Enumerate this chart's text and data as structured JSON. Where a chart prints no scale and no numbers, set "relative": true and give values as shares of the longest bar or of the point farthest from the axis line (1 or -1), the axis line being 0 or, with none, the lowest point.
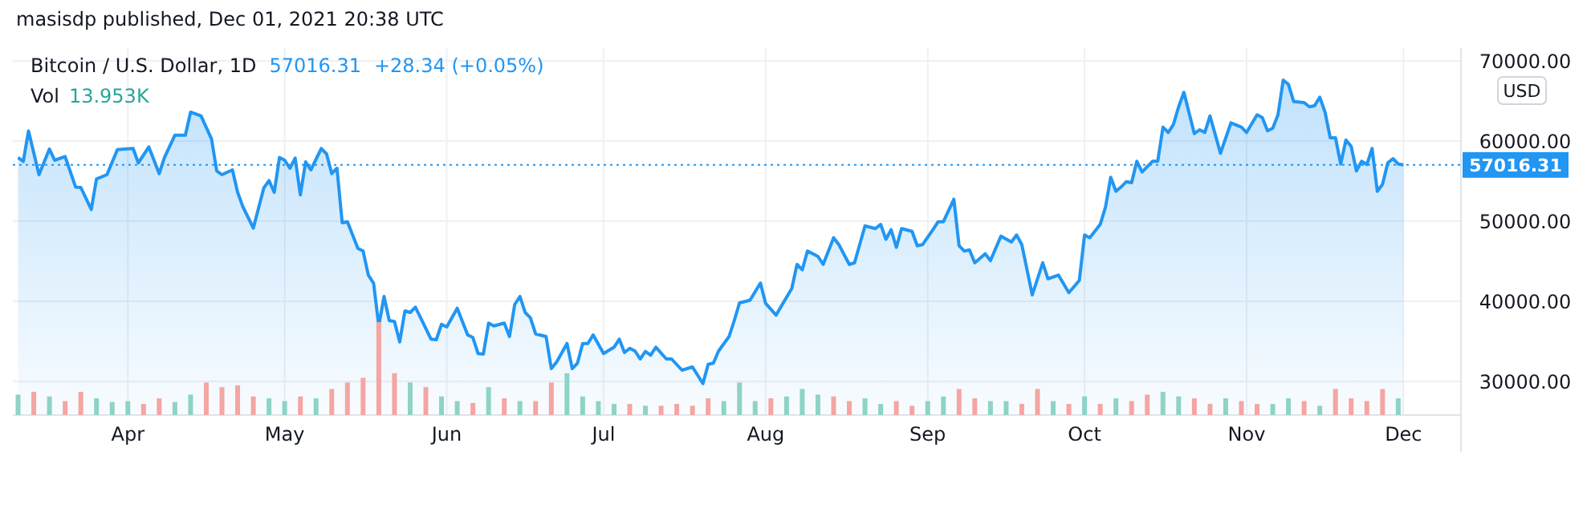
{
  "chart_data": [
    {
      "type": "area",
      "title": "Bitcoin / U.S. Dollar, 1D",
      "ylabel": "USD",
      "annotations": [
        "masisdp published, Dec 01, 2021 20:38 UTC",
        "57016.31",
        "+28.34 (+0.05%)",
        "Vol",
        "13.953K"
      ],
      "xlim": [
        "2021-03-10",
        "2021-12-12"
      ],
      "ylim": [
        25800,
        71600
      ],
      "xticks": [
        {
          "value": "2021-04-01",
          "label": "Apr"
        },
        {
          "value": "2021-05-01",
          "label": "May"
        },
        {
          "value": "2021-06-01",
          "label": "Jun"
        },
        {
          "value": "2021-07-01",
          "label": "Jul"
        },
        {
          "value": "2021-08-01",
          "label": "Aug"
        },
        {
          "value": "2021-09-01",
          "label": "Sep"
        },
        {
          "value": "2021-10-01",
          "label": "Oct"
        },
        {
          "value": "2021-11-01",
          "label": "Nov"
        },
        {
          "value": "2021-12-01",
          "label": "Dec"
        }
      ],
      "yticks": [
        {
          "value": 30000,
          "label": "30000.00"
        },
        {
          "value": 40000,
          "label": "40000.00"
        },
        {
          "value": 50000,
          "label": "50000.00"
        },
        {
          "value": 60000,
          "label": "60000.00"
        },
        {
          "value": 70000,
          "label": "70000.00"
        }
      ],
      "grid": true,
      "ref_lines": [
        {
          "axis": "y",
          "value": 57016.31,
          "label": "57016.31",
          "color": "#2196f3",
          "line_style": "dotted"
        }
      ],
      "series": [
        {
          "color": "#2196f3",
          "x": [
            "2021-03-11",
            "2021-03-12",
            "2021-03-13",
            "2021-03-15",
            "2021-03-17",
            "2021-03-18",
            "2021-03-20",
            "2021-03-22",
            "2021-03-23",
            "2021-03-25",
            "2021-03-26",
            "2021-03-28",
            "2021-03-30",
            "2021-04-02",
            "2021-04-03",
            "2021-04-05",
            "2021-04-07",
            "2021-04-08",
            "2021-04-10",
            "2021-04-12",
            "2021-04-13",
            "2021-04-15",
            "2021-04-17",
            "2021-04-18",
            "2021-04-19",
            "2021-04-21",
            "2021-04-22",
            "2021-04-23",
            "2021-04-25",
            "2021-04-27",
            "2021-04-28",
            "2021-04-29",
            "2021-04-30",
            "2021-05-01",
            "2021-05-02",
            "2021-05-03",
            "2021-05-04",
            "2021-05-05",
            "2021-05-06",
            "2021-05-08",
            "2021-05-09",
            "2021-05-10",
            "2021-05-11",
            "2021-05-12",
            "2021-05-13",
            "2021-05-15",
            "2021-05-16",
            "2021-05-17",
            "2021-05-18",
            "2021-05-19",
            "2021-05-20",
            "2021-05-21",
            "2021-05-22",
            "2021-05-23",
            "2021-05-24",
            "2021-05-25",
            "2021-05-26",
            "2021-05-27",
            "2021-05-29",
            "2021-05-30",
            "2021-05-31",
            "2021-06-01",
            "2021-06-03",
            "2021-06-05",
            "2021-06-06",
            "2021-06-07",
            "2021-06-08",
            "2021-06-09",
            "2021-06-10",
            "2021-06-12",
            "2021-06-13",
            "2021-06-14",
            "2021-06-15",
            "2021-06-16",
            "2021-06-17",
            "2021-06-18",
            "2021-06-20",
            "2021-06-21",
            "2021-06-22",
            "2021-06-24",
            "2021-06-25",
            "2021-06-26",
            "2021-06-27",
            "2021-06-28",
            "2021-06-29",
            "2021-07-01",
            "2021-07-03",
            "2021-07-04",
            "2021-07-05",
            "2021-07-06",
            "2021-07-07",
            "2021-07-08",
            "2021-07-09",
            "2021-07-10",
            "2021-07-11",
            "2021-07-13",
            "2021-07-14",
            "2021-07-16",
            "2021-07-18",
            "2021-07-20",
            "2021-07-21",
            "2021-07-22",
            "2021-07-23",
            "2021-07-25",
            "2021-07-26",
            "2021-07-27",
            "2021-07-29",
            "2021-07-31",
            "2021-08-01",
            "2021-08-03",
            "2021-08-04",
            "2021-08-06",
            "2021-08-07",
            "2021-08-08",
            "2021-08-09",
            "2021-08-11",
            "2021-08-12",
            "2021-08-14",
            "2021-08-15",
            "2021-08-17",
            "2021-08-18",
            "2021-08-20",
            "2021-08-22",
            "2021-08-23",
            "2021-08-24",
            "2021-08-25",
            "2021-08-26",
            "2021-08-27",
            "2021-08-29",
            "2021-08-30",
            "2021-08-31",
            "2021-09-02",
            "2021-09-03",
            "2021-09-04",
            "2021-09-06",
            "2021-09-07",
            "2021-09-08",
            "2021-09-09",
            "2021-09-10",
            "2021-09-12",
            "2021-09-13",
            "2021-09-15",
            "2021-09-17",
            "2021-09-18",
            "2021-09-19",
            "2021-09-21",
            "2021-09-23",
            "2021-09-24",
            "2021-09-26",
            "2021-09-28",
            "2021-09-30",
            "2021-10-01",
            "2021-10-02",
            "2021-10-04",
            "2021-10-05",
            "2021-10-06",
            "2021-10-07",
            "2021-10-08",
            "2021-10-09",
            "2021-10-10",
            "2021-10-11",
            "2021-10-12",
            "2021-10-14",
            "2021-10-15",
            "2021-10-16",
            "2021-10-17",
            "2021-10-18",
            "2021-10-19",
            "2021-10-20",
            "2021-10-22",
            "2021-10-23",
            "2021-10-24",
            "2021-10-25",
            "2021-10-27",
            "2021-10-29",
            "2021-10-31",
            "2021-11-01",
            "2021-11-03",
            "2021-11-04",
            "2021-11-05",
            "2021-11-06",
            "2021-11-07",
            "2021-11-08",
            "2021-11-09",
            "2021-11-10",
            "2021-11-12",
            "2021-11-13",
            "2021-11-14",
            "2021-11-15",
            "2021-11-16",
            "2021-11-17",
            "2021-11-18",
            "2021-11-19",
            "2021-11-20",
            "2021-11-21",
            "2021-11-22",
            "2021-11-23",
            "2021-11-24",
            "2021-11-25",
            "2021-11-26",
            "2021-11-27",
            "2021-11-28",
            "2021-11-29",
            "2021-11-30",
            "2021-12-01"
          ],
          "values": [
            57940,
            57460,
            61260,
            55800,
            59000,
            57600,
            58060,
            54260,
            54200,
            51460,
            55260,
            55800,
            58930,
            59070,
            57270,
            59270,
            55930,
            57940,
            60730,
            60730,
            63600,
            63130,
            60270,
            56270,
            55800,
            56400,
            53600,
            51800,
            49130,
            54130,
            55070,
            53600,
            57940,
            57600,
            56600,
            57870,
            53270,
            57400,
            56400,
            59070,
            58400,
            55930,
            56600,
            49800,
            49930,
            46600,
            46270,
            43270,
            42270,
            36930,
            40600,
            37600,
            37470,
            34930,
            38800,
            38600,
            39270,
            37930,
            35270,
            35200,
            37130,
            36800,
            39130,
            35800,
            35470,
            33470,
            33400,
            37270,
            36930,
            37270,
            35600,
            39600,
            40600,
            38600,
            37930,
            35930,
            35600,
            31600,
            32400,
            34730,
            31600,
            32270,
            34730,
            34730,
            35800,
            33470,
            34270,
            35270,
            33600,
            34130,
            33800,
            32800,
            33730,
            33270,
            34270,
            32800,
            32800,
            31400,
            31800,
            29730,
            32130,
            32270,
            33800,
            35600,
            37600,
            39800,
            40130,
            42270,
            39730,
            38270,
            39400,
            41600,
            44600,
            43930,
            46270,
            45600,
            44600,
            47930,
            47070,
            44600,
            44800,
            49400,
            49070,
            49600,
            47730,
            48930,
            46730,
            49070,
            48730,
            46930,
            47070,
            48930,
            49930,
            49930,
            52730,
            46930,
            46270,
            46400,
            44800,
            45930,
            45070,
            48130,
            47400,
            48270,
            47070,
            40800,
            44800,
            42800,
            43270,
            41070,
            42600,
            48270,
            47930,
            49600,
            51730,
            55470,
            53730,
            54270,
            54930,
            54800,
            57470,
            56130,
            57470,
            57470,
            61730,
            61070,
            62070,
            64270,
            66070,
            60930,
            61400,
            61070,
            63130,
            58470,
            62270,
            61730,
            61070,
            63270,
            62930,
            61270,
            61600,
            63270,
            67600,
            67070,
            64930,
            64800,
            64270,
            64400,
            65470,
            63600,
            60400,
            60400,
            57130,
            60130,
            59330,
            56270,
            57470,
            57070,
            59070,
            53730,
            54600,
            57270,
            57800,
            57130,
            57016.31
          ]
        }
      ]
    },
    {
      "type": "bar",
      "relative": true,
      "xlim": [
        "2021-03-10",
        "2021-12-12"
      ],
      "x": [
        "2021-03-11",
        "2021-03-14",
        "2021-03-17",
        "2021-03-20",
        "2021-03-23",
        "2021-03-26",
        "2021-03-29",
        "2021-04-01",
        "2021-04-04",
        "2021-04-07",
        "2021-04-10",
        "2021-04-13",
        "2021-04-16",
        "2021-04-19",
        "2021-04-22",
        "2021-04-25",
        "2021-04-28",
        "2021-05-01",
        "2021-05-04",
        "2021-05-07",
        "2021-05-10",
        "2021-05-13",
        "2021-05-16",
        "2021-05-19",
        "2021-05-22",
        "2021-05-25",
        "2021-05-28",
        "2021-05-31",
        "2021-06-03",
        "2021-06-06",
        "2021-06-09",
        "2021-06-12",
        "2021-06-15",
        "2021-06-18",
        "2021-06-21",
        "2021-06-24",
        "2021-06-27",
        "2021-06-30",
        "2021-07-03",
        "2021-07-06",
        "2021-07-09",
        "2021-07-12",
        "2021-07-15",
        "2021-07-18",
        "2021-07-21",
        "2021-07-24",
        "2021-07-27",
        "2021-07-30",
        "2021-08-02",
        "2021-08-05",
        "2021-08-08",
        "2021-08-11",
        "2021-08-14",
        "2021-08-17",
        "2021-08-20",
        "2021-08-23",
        "2021-08-26",
        "2021-08-29",
        "2021-09-01",
        "2021-09-04",
        "2021-09-07",
        "2021-09-10",
        "2021-09-13",
        "2021-09-16",
        "2021-09-19",
        "2021-09-22",
        "2021-09-25",
        "2021-09-28",
        "2021-10-01",
        "2021-10-04",
        "2021-10-07",
        "2021-10-10",
        "2021-10-13",
        "2021-10-16",
        "2021-10-19",
        "2021-10-22",
        "2021-10-25",
        "2021-10-28",
        "2021-10-31",
        "2021-11-03",
        "2021-11-06",
        "2021-11-09",
        "2021-11-12",
        "2021-11-15",
        "2021-11-18",
        "2021-11-21",
        "2021-11-24",
        "2021-11-27",
        "2021-11-30"
      ],
      "values": [
        0.22,
        0.25,
        0.2,
        0.15,
        0.25,
        0.18,
        0.14,
        0.15,
        0.12,
        0.18,
        0.14,
        0.22,
        0.35,
        0.3,
        0.32,
        0.2,
        0.18,
        0.15,
        0.2,
        0.18,
        0.28,
        0.35,
        0.4,
        1.0,
        0.45,
        0.35,
        0.3,
        0.2,
        0.15,
        0.13,
        0.3,
        0.18,
        0.15,
        0.15,
        0.35,
        0.45,
        0.2,
        0.15,
        0.12,
        0.12,
        0.1,
        0.1,
        0.12,
        0.1,
        0.18,
        0.15,
        0.35,
        0.15,
        0.18,
        0.2,
        0.28,
        0.22,
        0.2,
        0.15,
        0.18,
        0.12,
        0.15,
        0.1,
        0.15,
        0.2,
        0.28,
        0.18,
        0.15,
        0.15,
        0.12,
        0.28,
        0.15,
        0.12,
        0.2,
        0.12,
        0.18,
        0.15,
        0.22,
        0.25,
        0.2,
        0.18,
        0.12,
        0.18,
        0.15,
        0.12,
        0.12,
        0.18,
        0.15,
        0.1,
        0.28,
        0.18,
        0.15,
        0.28,
        0.18
      ],
      "colors": [
        "#8ed3c6",
        "#f5a5a3",
        "#8ed3c6",
        "#f5a5a3",
        "#f5a5a3",
        "#8ed3c6",
        "#8ed3c6",
        "#8ed3c6",
        "#f5a5a3",
        "#f5a5a3",
        "#8ed3c6",
        "#8ed3c6",
        "#f5a5a3",
        "#f5a5a3",
        "#f5a5a3",
        "#f5a5a3",
        "#8ed3c6",
        "#8ed3c6",
        "#f5a5a3",
        "#8ed3c6",
        "#f5a5a3",
        "#f5a5a3",
        "#f5a5a3",
        "#f5a5a3",
        "#f5a5a3",
        "#8ed3c6",
        "#f5a5a3",
        "#8ed3c6",
        "#8ed3c6",
        "#f5a5a3",
        "#8ed3c6",
        "#f5a5a3",
        "#8ed3c6",
        "#f5a5a3",
        "#f5a5a3",
        "#8ed3c6",
        "#8ed3c6",
        "#8ed3c6",
        "#8ed3c6",
        "#f5a5a3",
        "#8ed3c6",
        "#f5a5a3",
        "#f5a5a3",
        "#f5a5a3",
        "#f5a5a3",
        "#8ed3c6",
        "#8ed3c6",
        "#8ed3c6",
        "#f5a5a3",
        "#8ed3c6",
        "#8ed3c6",
        "#8ed3c6",
        "#f5a5a3",
        "#f5a5a3",
        "#8ed3c6",
        "#8ed3c6",
        "#f5a5a3",
        "#f5a5a3",
        "#8ed3c6",
        "#8ed3c6",
        "#f5a5a3",
        "#f5a5a3",
        "#8ed3c6",
        "#8ed3c6",
        "#f5a5a3",
        "#f5a5a3",
        "#8ed3c6",
        "#f5a5a3",
        "#8ed3c6",
        "#f5a5a3",
        "#8ed3c6",
        "#f5a5a3",
        "#f5a5a3",
        "#8ed3c6",
        "#8ed3c6",
        "#f5a5a3",
        "#f5a5a3",
        "#8ed3c6",
        "#f5a5a3",
        "#f5a5a3",
        "#8ed3c6",
        "#8ed3c6",
        "#f5a5a3",
        "#8ed3c6",
        "#f5a5a3",
        "#f5a5a3",
        "#f5a5a3",
        "#f5a5a3",
        "#8ed3c6"
      ]
    }
  ]
}
